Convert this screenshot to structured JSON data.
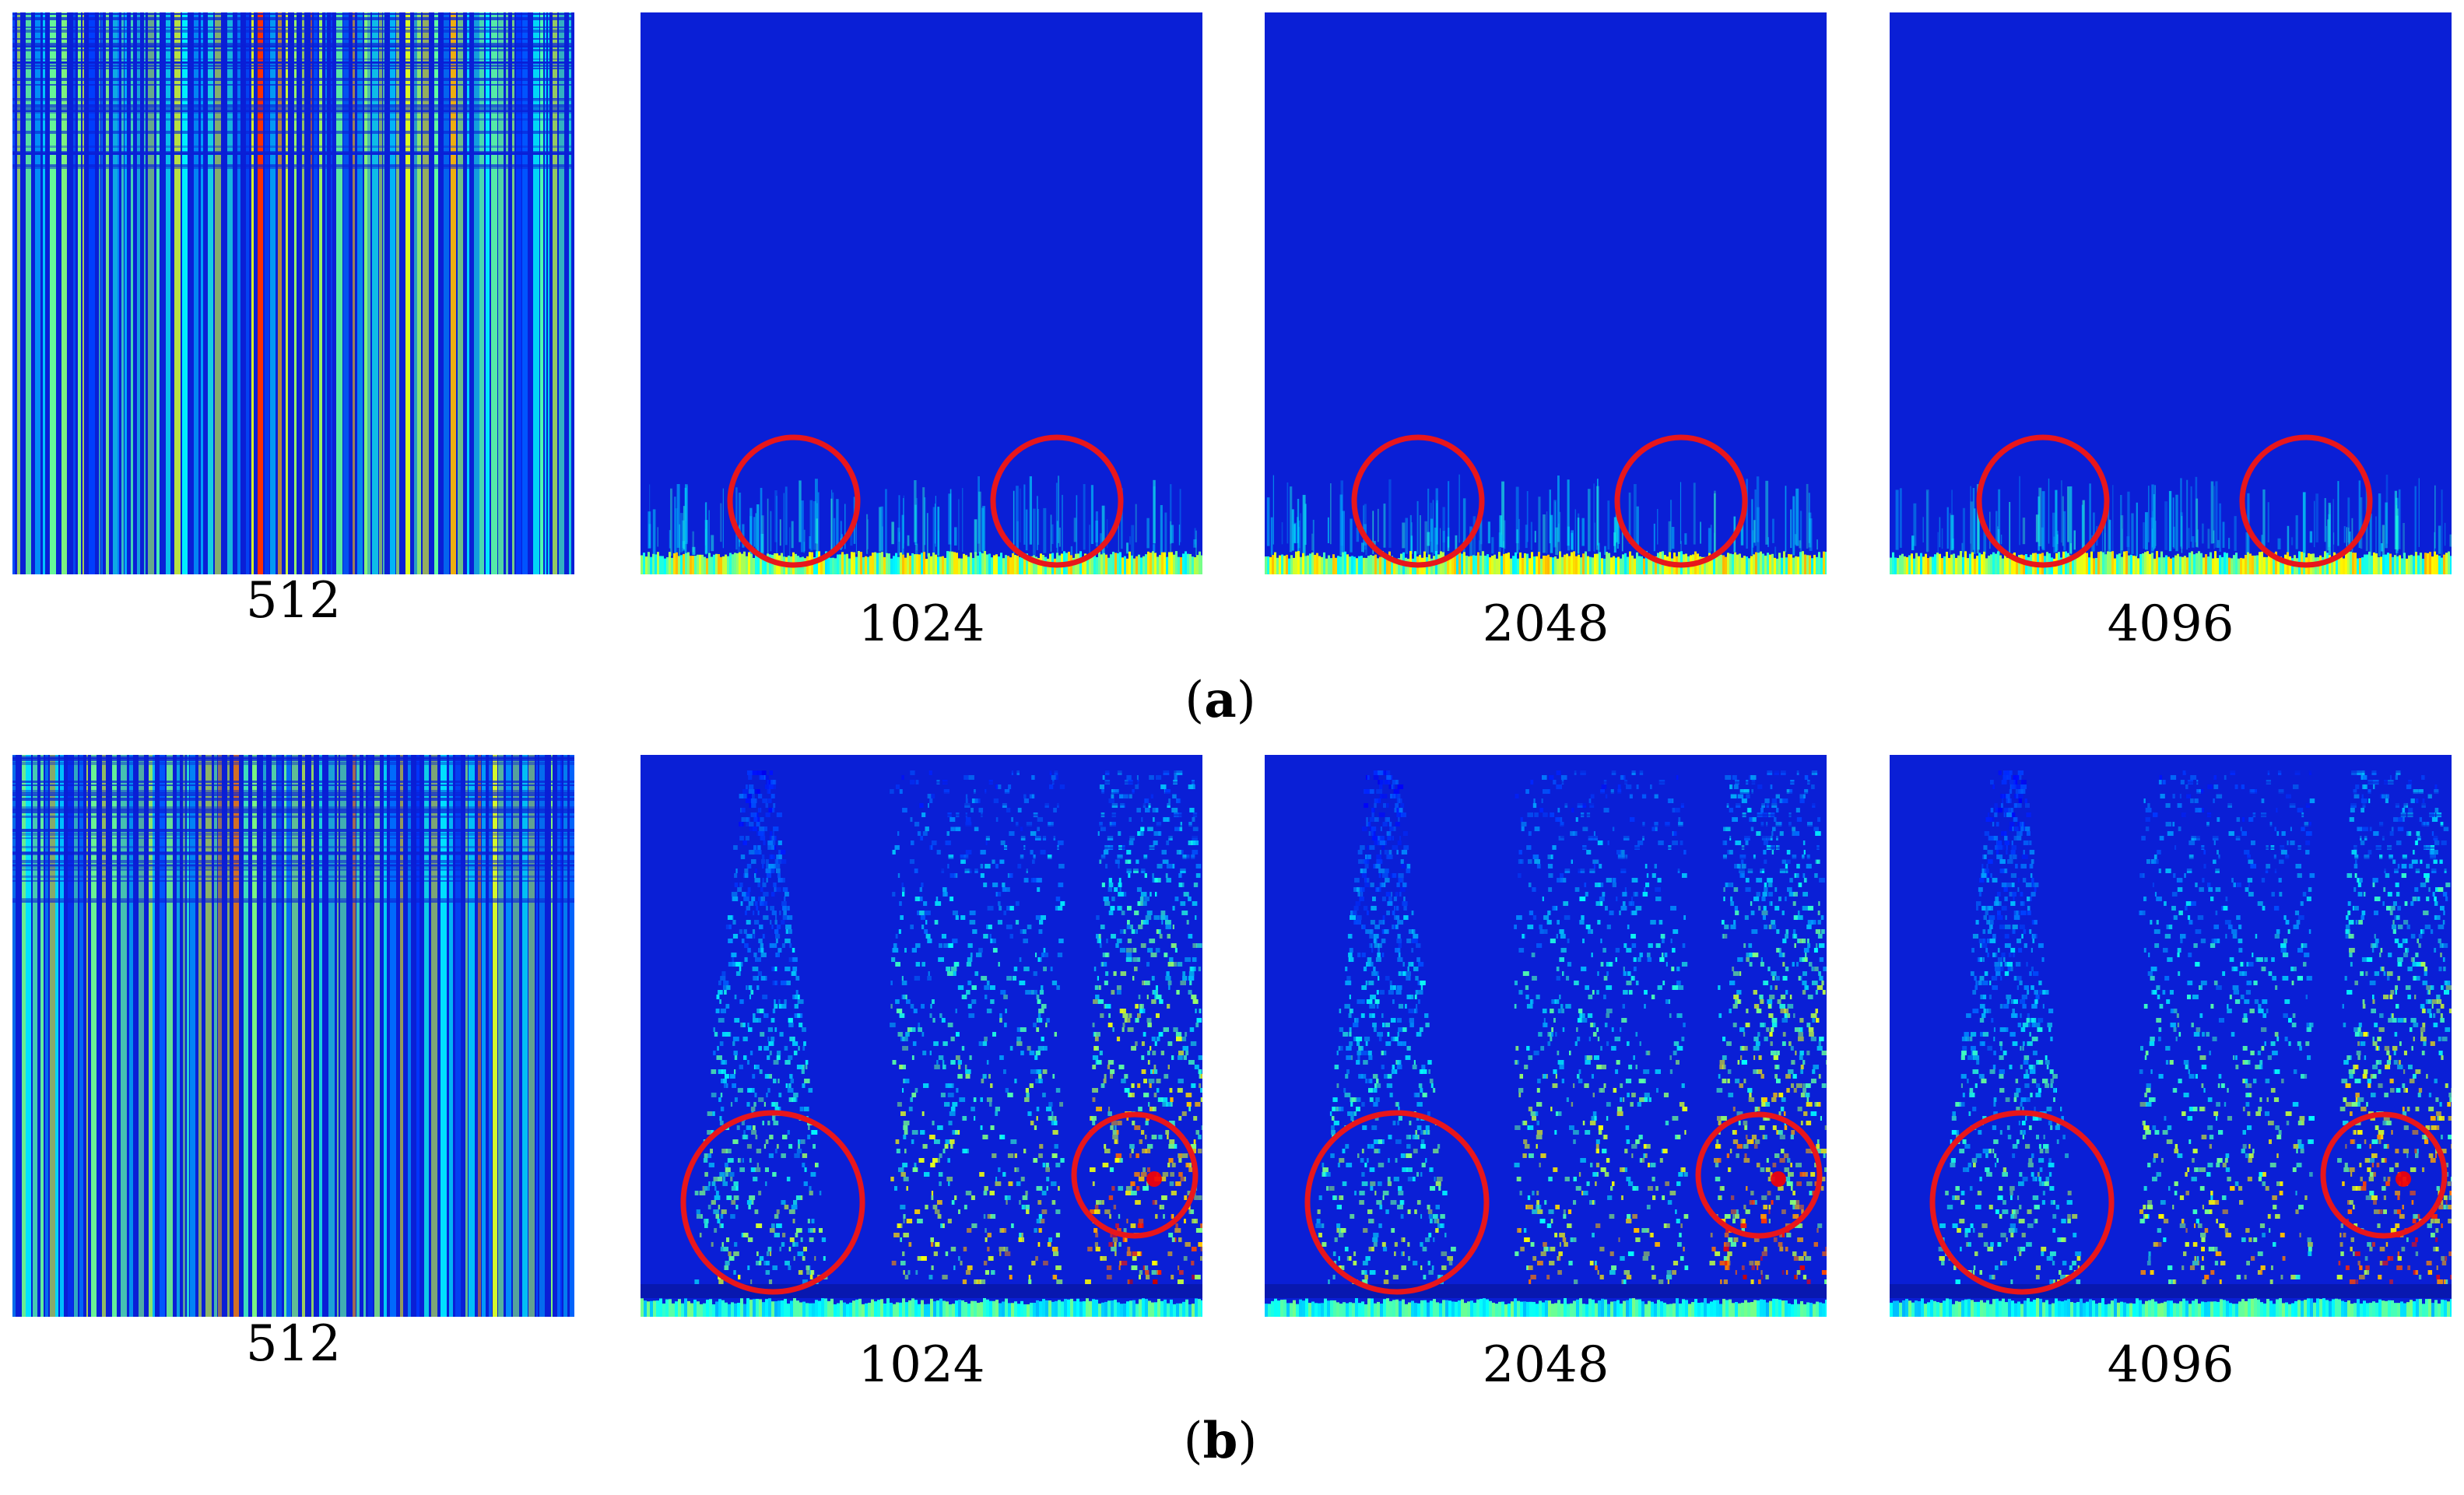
{
  "rows": [
    {
      "caption_letter": "a",
      "panels": [
        {
          "label": "512",
          "pattern": "stripes"
        },
        {
          "label": "1024",
          "pattern": "quiet"
        },
        {
          "label": "2048",
          "pattern": "quiet"
        },
        {
          "label": "4096",
          "pattern": "quiet"
        }
      ]
    },
    {
      "caption_letter": "b",
      "panels": [
        {
          "label": "512",
          "pattern": "stripes"
        },
        {
          "label": "1024",
          "pattern": "plumes"
        },
        {
          "label": "2048",
          "pattern": "plumes"
        },
        {
          "label": "4096",
          "pattern": "plumes"
        }
      ]
    }
  ],
  "colors": {
    "background_blue": "#0a1fd6",
    "highlight_circle": "#e8161b",
    "jet_low": "#0a1fd6",
    "jet_high": "#e8161b"
  }
}
